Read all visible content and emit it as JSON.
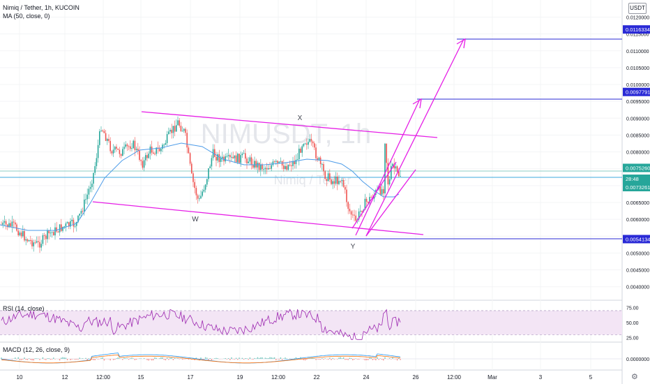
{
  "header": {
    "title": "Nimiq / Tether, 1h, KUCOIN",
    "ma_label": "MA (50, close, 0)",
    "currency_button": "USDT"
  },
  "watermark": {
    "symbol": "NIMUSDT, 1h",
    "name": "Nimiq / Tether"
  },
  "chart_data": [
    {
      "type": "candlestick",
      "title": "Nimiq / Tether, 1h, KUCOIN",
      "x_tick_labels": [
        "10",
        "12",
        "12:00",
        "15",
        "17",
        "19",
        "12:00",
        "22",
        "24",
        "26",
        "12:00",
        "Mar",
        "3",
        "5"
      ],
      "y_tick_labels": [
        "0.0040000",
        "0.0045000",
        "0.0050000",
        "0.0055000",
        "0.0060000",
        "0.0065000",
        "0.0070000",
        "0.0075000",
        "0.0080000",
        "0.0085000",
        "0.0090000",
        "0.0095000",
        "0.0100000",
        "0.0105000",
        "0.0110000",
        "0.0115000",
        "0.0120000"
      ],
      "ylim": [
        0.0036,
        0.0123
      ],
      "price_labels": [
        {
          "text": "0.0116334",
          "value": 0.0116334,
          "color": "#2a2ad6"
        },
        {
          "text": "0.0097791",
          "value": 0.0097791,
          "color": "#2a2ad6"
        },
        {
          "text": "0.0075260",
          "value": 0.007526,
          "color": "#26a69a"
        },
        {
          "text": "28:48",
          "value": 0.0074,
          "color": "#26a69a"
        },
        {
          "text": "0.0073261",
          "value": 0.0073261,
          "color": "#26a69a"
        },
        {
          "text": "0.0054134",
          "value": 0.0054134,
          "color": "#2a2ad6"
        }
      ],
      "annotations": [
        "X",
        "W",
        "Y"
      ],
      "series": [
        {
          "name": "MA (50, close, 0)",
          "color": "#4c9be8"
        }
      ],
      "colors": {
        "up": "#26a69a",
        "down": "#ef5350",
        "drawing": "#e61ee6",
        "level": "#2a2ad6"
      }
    },
    {
      "type": "line",
      "title": "RSI (14, close)",
      "y_tick_labels": [
        "25.00",
        "50.00",
        "75.00"
      ],
      "ylim": [
        20,
        85
      ],
      "band": [
        30,
        70
      ],
      "series": [
        {
          "color": "#9c27b0"
        }
      ]
    },
    {
      "type": "line",
      "title": "MACD (12, 26, close, 9)",
      "y_tick_labels": [
        "0.0000000"
      ],
      "series": [
        {
          "color": "#2196f3"
        },
        {
          "color": "#ff6d00"
        }
      ]
    }
  ]
}
